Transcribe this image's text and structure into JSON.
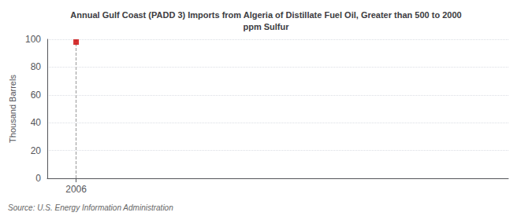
{
  "chart_data": {
    "type": "scatter",
    "title": "Annual Gulf Coast (PADD 3) Imports from Algeria of Distillate Fuel Oil, Greater than 500 to 2000\nppm Sulfur",
    "ylabel": "Thousand Barrels",
    "annotation": "Source: U.S. Energy Information Administration",
    "x": [
      2006
    ],
    "values": [
      98
    ],
    "color": "#cc0000",
    "marker": "square",
    "vline": 2006,
    "xlim": [
      2005.5,
      2013.5
    ],
    "xticks": [
      2006
    ],
    "ylim": [
      0,
      100
    ],
    "yticks": [
      0,
      20,
      40,
      60,
      80,
      100
    ],
    "grid": true
  }
}
